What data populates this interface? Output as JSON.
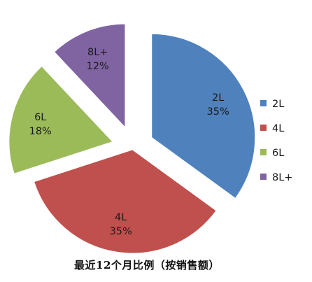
{
  "chart_data": {
    "type": "pie",
    "title": "最近12个月比例（按销售额）",
    "legend_position": "right",
    "exploded": true,
    "slices": [
      {
        "label": "2L",
        "value": 35,
        "percent_label": "35%",
        "color": "#4f81bd"
      },
      {
        "label": "4L",
        "value": 35,
        "percent_label": "35%",
        "color": "#c0504d"
      },
      {
        "label": "6L",
        "value": 18,
        "percent_label": "18%",
        "color": "#9bbb59"
      },
      {
        "label": "8L+",
        "value": 12,
        "percent_label": "12%",
        "color": "#8064a2"
      }
    ]
  }
}
